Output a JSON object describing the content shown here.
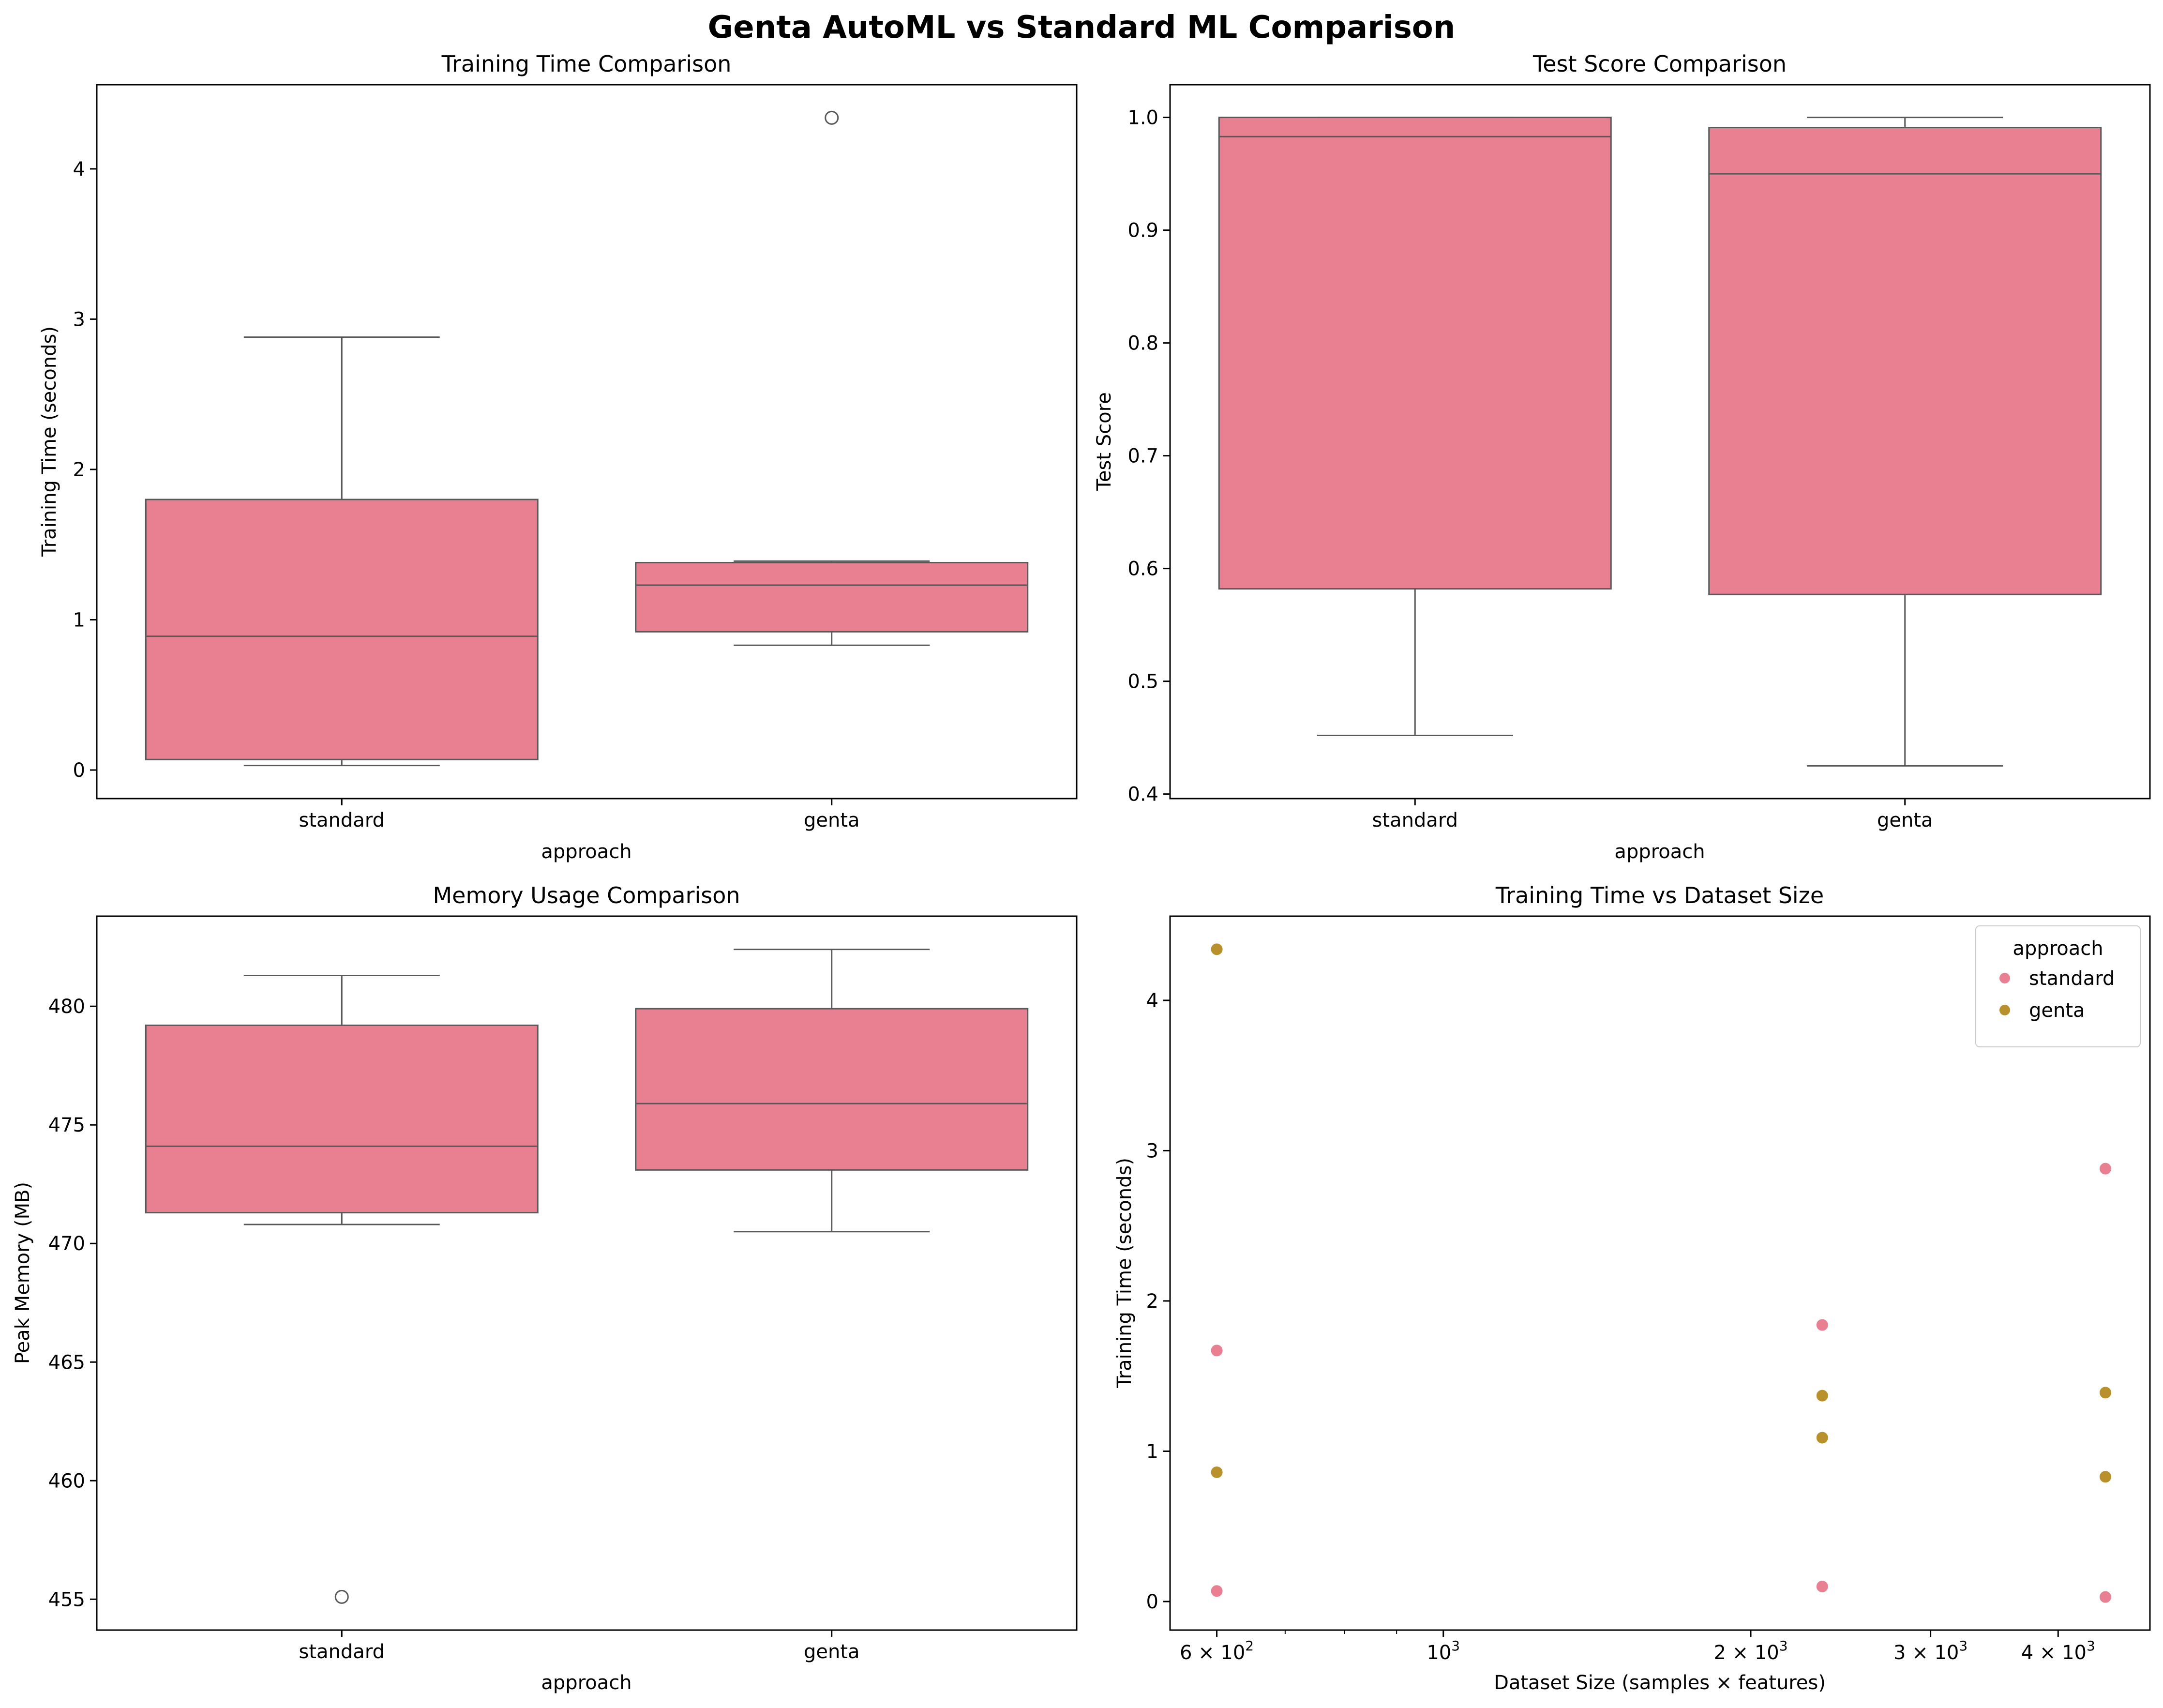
{
  "suptitle": "Genta AutoML vs Standard ML Comparison",
  "colors": {
    "standard": "#e88092",
    "genta": "#b8912d",
    "line": "#595959",
    "axes": "#000000"
  },
  "chart_data": [
    {
      "type": "box",
      "title": "Training Time Comparison",
      "xlabel": "approach",
      "ylabel": "Training Time (seconds)",
      "categories": [
        "standard",
        "genta"
      ],
      "ylim": [
        -0.19,
        4.56
      ],
      "yticks": [
        0,
        1,
        2,
        3,
        4
      ],
      "ytick_labels": [
        "0",
        "1",
        "2",
        "3",
        "4"
      ],
      "boxes": [
        {
          "name": "standard",
          "whisker_low": 0.03,
          "q1": 0.07,
          "median": 0.89,
          "q3": 1.8,
          "whisker_high": 2.88,
          "outliers": []
        },
        {
          "name": "genta",
          "whisker_low": 0.83,
          "q1": 0.92,
          "median": 1.23,
          "q3": 1.38,
          "whisker_high": 1.39,
          "outliers": [
            4.34
          ]
        }
      ]
    },
    {
      "type": "box",
      "title": "Test Score Comparison",
      "xlabel": "approach",
      "ylabel": "Test Score",
      "categories": [
        "standard",
        "genta"
      ],
      "ylim": [
        0.396,
        1.029
      ],
      "yticks": [
        0.4,
        0.5,
        0.6,
        0.7,
        0.8,
        0.9,
        1.0
      ],
      "ytick_labels": [
        "0.4",
        "0.5",
        "0.6",
        "0.7",
        "0.8",
        "0.9",
        "1.0"
      ],
      "boxes": [
        {
          "name": "standard",
          "whisker_low": 0.452,
          "q1": 0.582,
          "median": 0.983,
          "q3": 1.0,
          "whisker_high": 1.0,
          "outliers": []
        },
        {
          "name": "genta",
          "whisker_low": 0.425,
          "q1": 0.577,
          "median": 0.95,
          "q3": 0.991,
          "whisker_high": 1.0,
          "outliers": []
        }
      ]
    },
    {
      "type": "box",
      "title": "Memory Usage Comparison",
      "xlabel": "approach",
      "ylabel": "Peak Memory (MB)",
      "categories": [
        "standard",
        "genta"
      ],
      "ylim": [
        453.7,
        483.8
      ],
      "yticks": [
        455,
        460,
        465,
        470,
        475,
        480
      ],
      "ytick_labels": [
        "455",
        "460",
        "465",
        "470",
        "475",
        "480"
      ],
      "boxes": [
        {
          "name": "standard",
          "whisker_low": 470.8,
          "q1": 471.3,
          "median": 474.1,
          "q3": 479.2,
          "whisker_high": 481.3,
          "outliers": [
            455.1
          ]
        },
        {
          "name": "genta",
          "whisker_low": 470.5,
          "q1": 473.1,
          "median": 475.9,
          "q3": 479.9,
          "whisker_high": 482.4,
          "outliers": []
        }
      ]
    },
    {
      "type": "scatter",
      "title": "Training Time vs Dataset Size",
      "xlabel": "Dataset Size (samples × features)",
      "ylabel": "Training Time (seconds)",
      "xscale": "log",
      "xlim": [
        540,
        4920
      ],
      "ylim": [
        -0.19,
        4.56
      ],
      "xticks_major": [
        {
          "value": 600,
          "base": "6 × 10",
          "exp": "2"
        },
        {
          "value": 1000,
          "base": "10",
          "exp": "3"
        },
        {
          "value": 2000,
          "base": "2 × 10",
          "exp": "3"
        },
        {
          "value": 3000,
          "base": "3 × 10",
          "exp": "3"
        },
        {
          "value": 4000,
          "base": "4 × 10",
          "exp": "3"
        }
      ],
      "xticks_minor": [
        700,
        800,
        900
      ],
      "yticks": [
        0,
        1,
        2,
        3,
        4
      ],
      "ytick_labels": [
        "0",
        "1",
        "2",
        "3",
        "4"
      ],
      "legend": {
        "title": "approach",
        "placement": "top-right"
      },
      "series": [
        {
          "name": "standard",
          "color": "#e88092",
          "points": [
            [
              600,
              0.07
            ],
            [
              600,
              1.67
            ],
            [
              2350,
              0.1
            ],
            [
              2350,
              1.84
            ],
            [
              4450,
              0.03
            ],
            [
              4450,
              2.88
            ]
          ]
        },
        {
          "name": "genta",
          "color": "#b8912d",
          "points": [
            [
              600,
              0.86
            ],
            [
              600,
              4.34
            ],
            [
              2350,
              1.09
            ],
            [
              2350,
              1.37
            ],
            [
              4450,
              0.83
            ],
            [
              4450,
              1.39
            ]
          ]
        }
      ]
    }
  ]
}
